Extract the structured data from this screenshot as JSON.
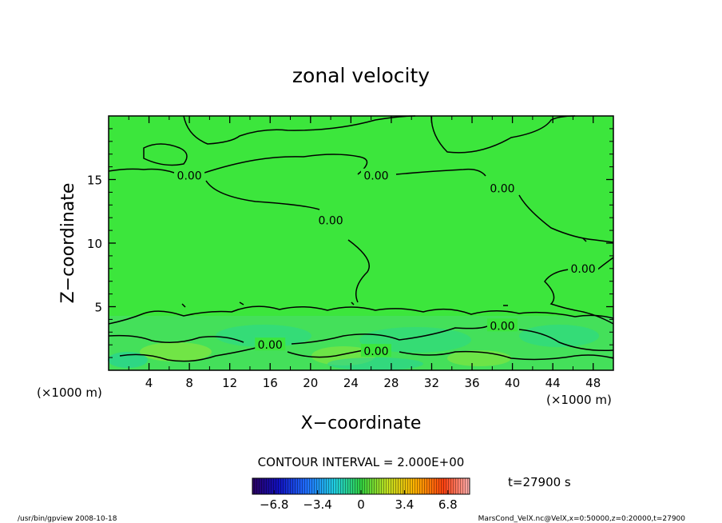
{
  "chart_data": {
    "type": "heatmap",
    "title": "zonal velocity",
    "xlabel": "X−coordinate",
    "ylabel": "Z−coordinate",
    "xunit_left": "(×1000 m)",
    "xunit_right": "(×1000 m)",
    "xlim": [
      0,
      50
    ],
    "ylim": [
      0,
      20
    ],
    "xticks": [
      4,
      8,
      12,
      16,
      20,
      24,
      28,
      32,
      36,
      40,
      44,
      48
    ],
    "yticks": [
      5,
      10,
      15
    ],
    "contour_labels": [
      {
        "text": "0.00",
        "x": 8.0,
        "y": 15.3
      },
      {
        "text": "0.00",
        "x": 26.5,
        "y": 15.3
      },
      {
        "text": "0.00",
        "x": 22.0,
        "y": 11.8
      },
      {
        "text": "0.00",
        "x": 39.0,
        "y": 14.3
      },
      {
        "text": "0.00",
        "x": 47.0,
        "y": 8.0
      },
      {
        "text": "0.00",
        "x": 39.0,
        "y": 3.5
      },
      {
        "text": "0.00",
        "x": 16.0,
        "y": 2.0
      },
      {
        "text": "0.00",
        "x": 26.5,
        "y": 1.5
      }
    ],
    "contour_interval": "CONTOUR INTERVAL = 2.000E+00",
    "time_label": "t=27900 s",
    "colorbar": {
      "ticks": [
        "−6.8",
        "−3.4",
        "0",
        "3.4",
        "6.8"
      ],
      "tick_values": [
        -6.8,
        -3.4,
        0,
        3.4,
        6.8
      ],
      "range": [
        -8.5,
        8.5
      ]
    }
  },
  "footer": {
    "left": "/usr/bin/gpview   2008-10-18",
    "right": "MarsCond_VelX.nc@VelX,x=0:50000,z=0:20000,t=27900"
  }
}
